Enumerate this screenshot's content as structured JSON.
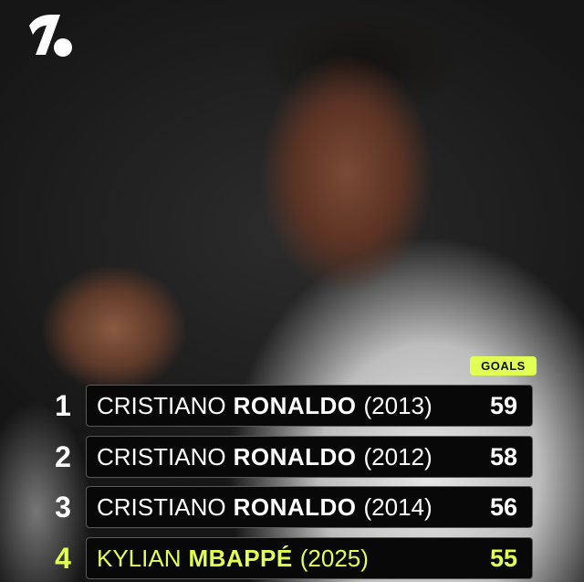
{
  "brand": {
    "logo_icon": "onefootball-logo",
    "accent": "#e2ff53"
  },
  "table": {
    "column_label": "GOALS",
    "rows": [
      {
        "rank": "1",
        "first": "CRISTIANO",
        "last": "RONALDO",
        "year": "(2013)",
        "goals": "59"
      },
      {
        "rank": "2",
        "first": "CRISTIANO",
        "last": "RONALDO",
        "year": "(2012)",
        "goals": "58"
      },
      {
        "rank": "3",
        "first": "CRISTIANO",
        "last": "RONALDO",
        "year": "(2014)",
        "goals": "56"
      },
      {
        "rank": "4",
        "first": "KYLIAN",
        "last": "MBAPPÉ",
        "year": "(2025)",
        "goals": "55",
        "highlighted": true
      }
    ]
  }
}
